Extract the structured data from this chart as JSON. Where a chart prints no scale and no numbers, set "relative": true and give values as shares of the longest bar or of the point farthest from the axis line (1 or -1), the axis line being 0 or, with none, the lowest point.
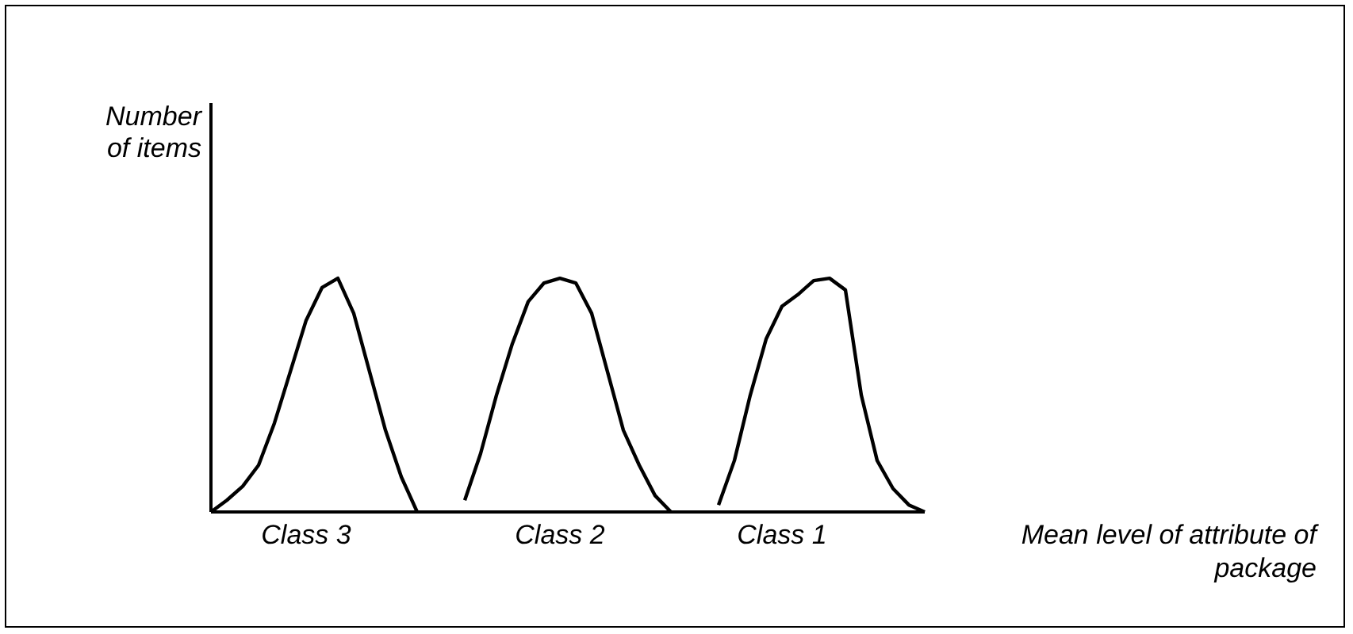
{
  "chart_data": {
    "type": "line",
    "relative": true,
    "ylabel": "Number of items",
    "xlabel": "Mean level of attribute of package",
    "marker": "none",
    "line_style": "solid",
    "tick_labels": "x",
    "categories": [
      null,
      null,
      null,
      null,
      null,
      null,
      "Class 3",
      null,
      null,
      null,
      null,
      null,
      null,
      null,
      null,
      null,
      null,
      null,
      null,
      null,
      null,
      null,
      "Class 2",
      null,
      null,
      null,
      null,
      null,
      null,
      null,
      null,
      null,
      null,
      null,
      null,
      null,
      "Class 1",
      null,
      null,
      null,
      null,
      null,
      null,
      null,
      null,
      null
    ],
    "series": [
      {
        "color": "#000000",
        "values": [
          0,
          0.05,
          0.11,
          0.2,
          0.38,
          0.6,
          0.82,
          0.96,
          1,
          0.85,
          0.6,
          0.35,
          0.15,
          0,
          null,
          null,
          null,
          null,
          null,
          null,
          null,
          null,
          null,
          null,
          null,
          null,
          null,
          null,
          null,
          null,
          null,
          null,
          null,
          null,
          null,
          null,
          null,
          null,
          null,
          null,
          null,
          null,
          null,
          null,
          null,
          null
        ]
      },
      {
        "color": "#000000",
        "values": [
          null,
          null,
          null,
          null,
          null,
          null,
          null,
          null,
          null,
          null,
          null,
          null,
          null,
          null,
          null,
          null,
          0.05,
          0.25,
          0.5,
          0.72,
          0.9,
          0.98,
          1,
          0.98,
          0.85,
          0.6,
          0.35,
          0.2,
          0.07,
          0,
          null,
          null,
          null,
          null,
          null,
          null,
          null,
          null,
          null,
          null,
          null,
          null,
          null,
          null,
          null,
          null
        ]
      },
      {
        "color": "#000000",
        "values": [
          null,
          null,
          null,
          null,
          null,
          null,
          null,
          null,
          null,
          null,
          null,
          null,
          null,
          null,
          null,
          null,
          null,
          null,
          null,
          null,
          null,
          null,
          null,
          null,
          null,
          null,
          null,
          null,
          null,
          null,
          null,
          null,
          0.03,
          0.22,
          0.5,
          0.74,
          0.88,
          0.93,
          0.99,
          1,
          0.95,
          0.5,
          0.22,
          0.1,
          0.03,
          0
        ]
      }
    ]
  }
}
